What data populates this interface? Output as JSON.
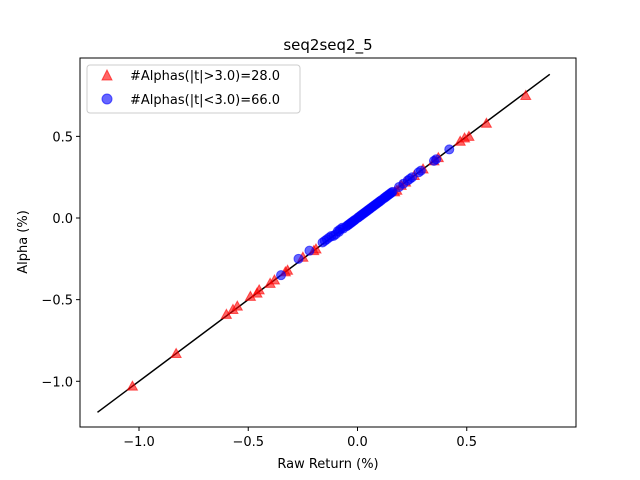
{
  "chart_data": {
    "type": "scatter",
    "title": "seq2seq2_5",
    "xlabel": "Raw Return (%)",
    "ylabel": "Alpha (%)",
    "xlim": [
      -1.27,
      1.0
    ],
    "ylim": [
      -1.28,
      0.98
    ],
    "x_ticks": [
      -1.0,
      -0.5,
      0.0,
      0.5
    ],
    "x_tick_labels": [
      "−1.0",
      "−0.5",
      "0.0",
      "0.5"
    ],
    "y_ticks": [
      -1.0,
      -0.5,
      0.0,
      0.5
    ],
    "y_tick_labels": [
      "−1.0",
      "−0.5",
      "0.0",
      "0.5"
    ],
    "grid": false,
    "legend_position": "top-left",
    "fit_line": {
      "x": [
        -1.19,
        0.88
      ],
      "y": [
        -1.19,
        0.88
      ],
      "color": "#000000"
    },
    "series": [
      {
        "name": "#Alphas(|t|>3.0)=28.0",
        "marker": "triangle",
        "color": "#ff0000",
        "points": [
          [
            -1.03,
            -1.03
          ],
          [
            -0.83,
            -0.83
          ],
          [
            -0.6,
            -0.59
          ],
          [
            -0.57,
            -0.56
          ],
          [
            -0.55,
            -0.54
          ],
          [
            -0.49,
            -0.48
          ],
          [
            -0.46,
            -0.46
          ],
          [
            -0.45,
            -0.44
          ],
          [
            -0.4,
            -0.4
          ],
          [
            -0.38,
            -0.38
          ],
          [
            -0.33,
            -0.33
          ],
          [
            -0.32,
            -0.32
          ],
          [
            -0.25,
            -0.24
          ],
          [
            -0.2,
            -0.2
          ],
          [
            -0.19,
            -0.19
          ],
          [
            0.17,
            0.16
          ],
          [
            0.18,
            0.17
          ],
          [
            0.2,
            0.2
          ],
          [
            0.22,
            0.22
          ],
          [
            0.26,
            0.26
          ],
          [
            0.3,
            0.3
          ],
          [
            0.37,
            0.37
          ],
          [
            0.47,
            0.47
          ],
          [
            0.49,
            0.49
          ],
          [
            0.51,
            0.5
          ],
          [
            0.59,
            0.58
          ],
          [
            0.77,
            0.75
          ],
          [
            0.35,
            0.35
          ]
        ]
      },
      {
        "name": "#Alphas(|t|<3.0)=66.0",
        "marker": "circle",
        "color": "#0000ff",
        "points": [
          [
            -0.35,
            -0.35
          ],
          [
            -0.27,
            -0.25
          ],
          [
            -0.22,
            -0.2
          ],
          [
            -0.16,
            -0.15
          ],
          [
            -0.15,
            -0.14
          ],
          [
            -0.14,
            -0.13
          ],
          [
            -0.13,
            -0.12
          ],
          [
            -0.12,
            -0.11
          ],
          [
            -0.1,
            -0.1
          ],
          [
            -0.09,
            -0.08
          ],
          [
            -0.08,
            -0.07
          ],
          [
            -0.07,
            -0.06
          ],
          [
            -0.05,
            -0.05
          ],
          [
            -0.04,
            -0.04
          ],
          [
            -0.03,
            -0.03
          ],
          [
            -0.02,
            -0.02
          ],
          [
            -0.01,
            -0.01
          ],
          [
            0.0,
            0.0
          ],
          [
            0.01,
            0.01
          ],
          [
            0.02,
            0.02
          ],
          [
            0.03,
            0.03
          ],
          [
            0.04,
            0.04
          ],
          [
            0.05,
            0.05
          ],
          [
            0.06,
            0.06
          ],
          [
            0.07,
            0.07
          ],
          [
            0.08,
            0.08
          ],
          [
            0.09,
            0.09
          ],
          [
            0.1,
            0.1
          ],
          [
            0.11,
            0.11
          ],
          [
            0.12,
            0.12
          ],
          [
            0.13,
            0.13
          ],
          [
            0.14,
            0.14
          ],
          [
            0.15,
            0.15
          ],
          [
            0.16,
            0.16
          ],
          [
            0.19,
            0.19
          ],
          [
            0.21,
            0.21
          ],
          [
            0.23,
            0.23
          ],
          [
            0.24,
            0.24
          ],
          [
            0.25,
            0.25
          ],
          [
            0.28,
            0.28
          ],
          [
            0.29,
            0.29
          ],
          [
            0.35,
            0.35
          ],
          [
            0.36,
            0.36
          ],
          [
            0.42,
            0.42
          ],
          [
            -0.11,
            -0.11
          ],
          [
            0.015,
            0.015
          ],
          [
            0.035,
            0.035
          ],
          [
            0.055,
            0.055
          ],
          [
            0.075,
            0.075
          ],
          [
            0.095,
            0.095
          ],
          [
            0.105,
            0.105
          ],
          [
            0.125,
            0.125
          ],
          [
            0.135,
            0.135
          ],
          [
            0.145,
            0.145
          ],
          [
            -0.015,
            -0.015
          ],
          [
            -0.025,
            -0.025
          ],
          [
            -0.035,
            -0.035
          ],
          [
            -0.045,
            -0.045
          ],
          [
            -0.065,
            -0.065
          ],
          [
            -0.085,
            -0.085
          ],
          [
            0.005,
            0.005
          ],
          [
            0.025,
            0.025
          ],
          [
            0.045,
            0.045
          ],
          [
            0.065,
            0.065
          ],
          [
            0.085,
            0.085
          ],
          [
            0.155,
            0.155
          ]
        ]
      }
    ]
  }
}
